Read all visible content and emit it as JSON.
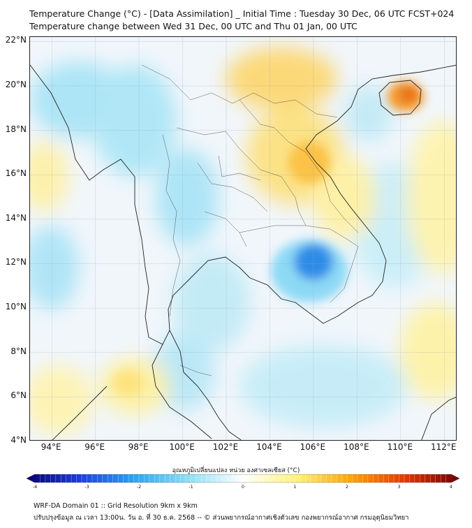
{
  "header": {
    "title_line1": "Temperature Change (°C) - [Data Assimilation] _ Initial Time : Tuesday 30 Dec, 06 UTC FCST+024",
    "title_line2": "Temperature change between Wed 31 Dec, 00 UTC and Thu 01 Jan, 00 UTC"
  },
  "map": {
    "lat_labels": [
      "22°N",
      "20°N",
      "18°N",
      "16°N",
      "14°N",
      "12°N",
      "10°N",
      "8°N",
      "6°N",
      "4°N"
    ],
    "lon_labels": [
      "94°E",
      "96°E",
      "98°E",
      "100°E",
      "102°E",
      "104°E",
      "106°E",
      "108°E",
      "110°E",
      "112°E"
    ],
    "lat_values": [
      22,
      20,
      18,
      16,
      14,
      12,
      10,
      8,
      6,
      4
    ],
    "lon_values": [
      94,
      96,
      98,
      100,
      102,
      104,
      106,
      108,
      110,
      112
    ],
    "lat_range": [
      4,
      22.2
    ],
    "lon_range": [
      93,
      112.6
    ],
    "gridlines": true,
    "background_color": "#f1f6fb",
    "features": [
      {
        "name": "cooling-centre-cambodia",
        "lon": 106.0,
        "lat": 12.1,
        "value": -2.3
      },
      {
        "name": "cooling-cambodia-south",
        "lon": 105.3,
        "lat": 11.0,
        "value": -1.2
      },
      {
        "name": "warming-hainan",
        "lon": 110.2,
        "lat": 19.6,
        "value": 2.6
      },
      {
        "name": "warming-north-vietnam",
        "lon": 104.8,
        "lat": 21.2,
        "value": 1.8
      },
      {
        "name": "warming-laos",
        "lon": 105.2,
        "lat": 16.4,
        "value": 1.5
      },
      {
        "name": "warming-andaman",
        "lon": 94.0,
        "lat": 17.0,
        "value": 1.0
      },
      {
        "name": "warming-sumatra",
        "lon": 98.0,
        "lat": 6.7,
        "value": 1.4
      },
      {
        "name": "cooling-myanmar",
        "lon": 96.0,
        "lat": 20.0,
        "value": -1.0
      },
      {
        "name": "cooling-thailand-west",
        "lon": 99.5,
        "lat": 16.5,
        "value": -0.8
      }
    ]
  },
  "colorbar": {
    "title": "อุณหภูมิเปลี่ยนแปลง หน่วย องศาเซลเซียส (°C)",
    "min": -4,
    "max": 4,
    "ticks": [
      "-4",
      "-3",
      "-2",
      "-1",
      "0",
      "1",
      "2",
      "3",
      "4"
    ],
    "tick_values": [
      -4,
      -3,
      -2,
      -1,
      0,
      1,
      2,
      3,
      4
    ],
    "stops": [
      {
        "v": -4,
        "c": "#08006e"
      },
      {
        "v": -3,
        "c": "#1f3ee3"
      },
      {
        "v": -2,
        "c": "#2aa6f2"
      },
      {
        "v": -1,
        "c": "#8fe0f5"
      },
      {
        "v": 0,
        "c": "#ffffff"
      },
      {
        "v": 1,
        "c": "#fff27a"
      },
      {
        "v": 2,
        "c": "#ffa400"
      },
      {
        "v": 3,
        "c": "#e73500"
      },
      {
        "v": 4,
        "c": "#6d0000"
      }
    ]
  },
  "footer": {
    "line1": "WRF-DA Domain 01 :: Grid Resolution 9km x 9km",
    "line2": "ปรับปรุงข้อมูล ณ เวลา 13:00น. วัน อ. ที่ 30 ธ.ค. 2568 -- © ส่วนพยากรณ์อากาศเชิงตัวเลข กองพยากรณ์อากาศ กรมอุตุนิยมวิทยา"
  }
}
